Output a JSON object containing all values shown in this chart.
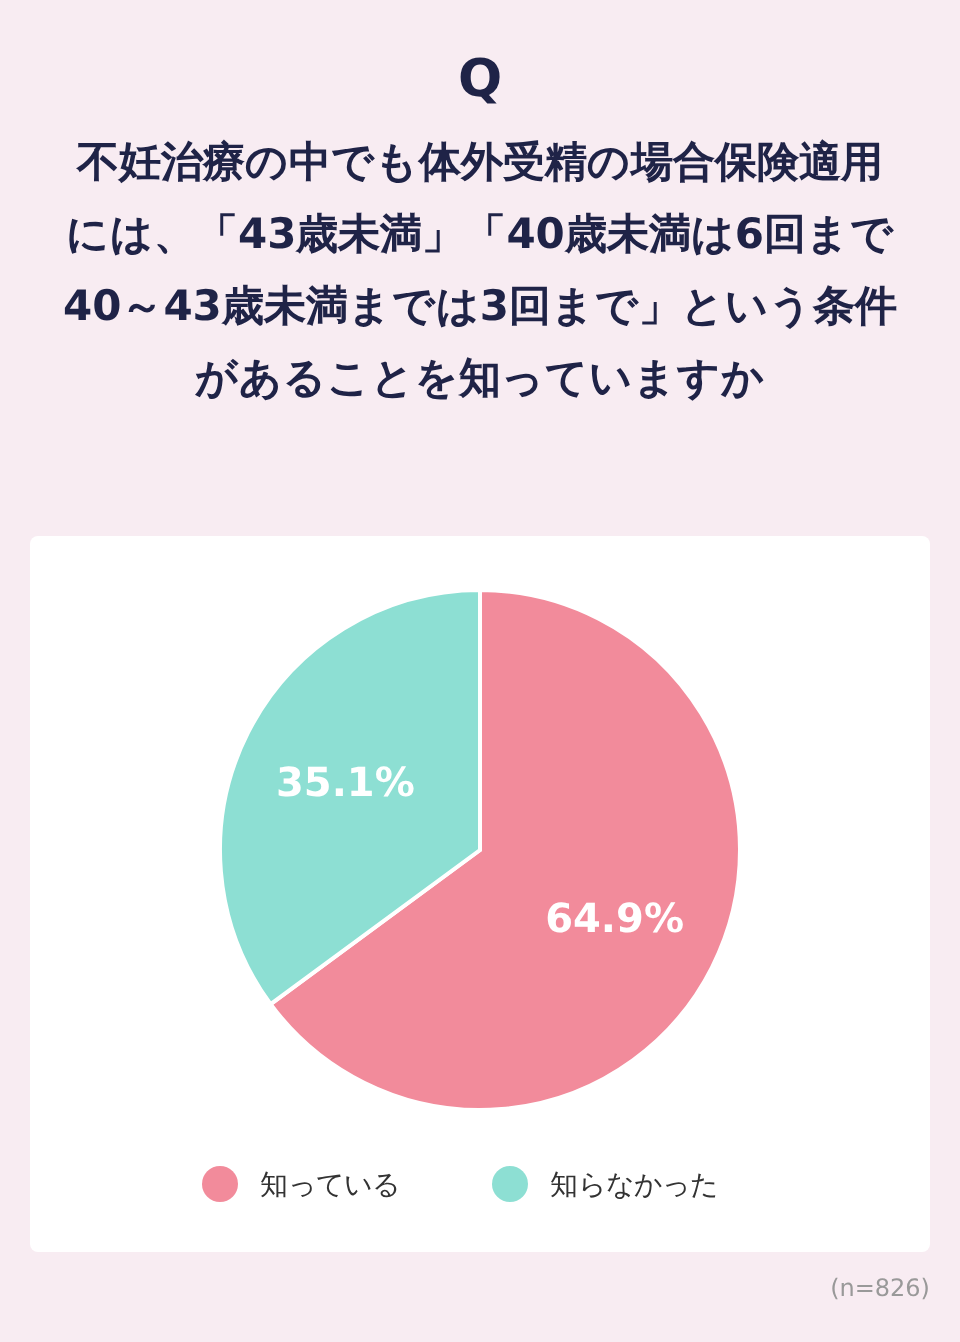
{
  "chart_data": {
    "type": "pie",
    "title": "Q",
    "subtitle": "不妊治療の中でも体外受精の場合保険適用には、「43歳未満」「40歳未満は6回まで40～43歳未満までは3回まで」という条件があることを知っていますか",
    "categories": [
      "知っている",
      "知らなかった"
    ],
    "values": [
      64.9,
      35.1
    ],
    "colors": [
      "#f28b9b",
      "#8ddfd3"
    ],
    "value_labels": [
      "64.9%",
      "35.1%"
    ],
    "legend": "bottom",
    "annotations": [
      "(n=826)"
    ]
  }
}
